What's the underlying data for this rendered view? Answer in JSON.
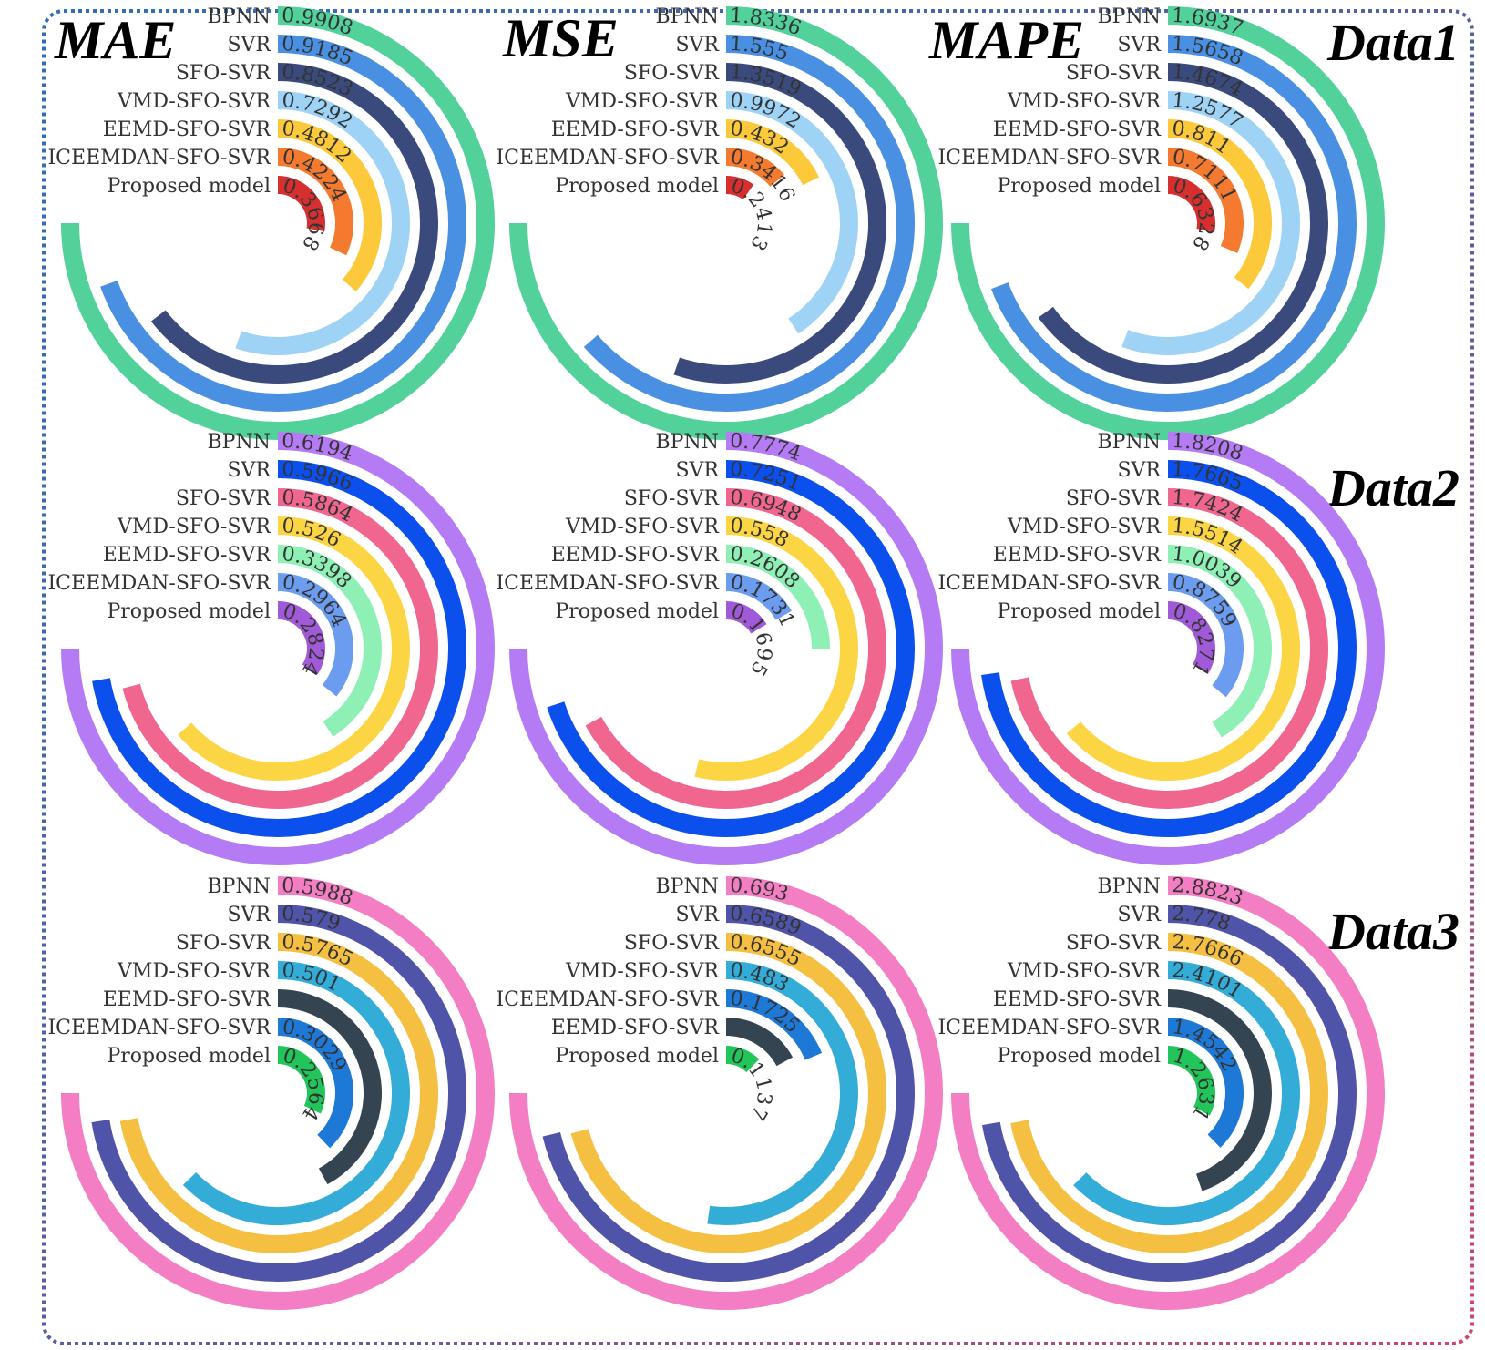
{
  "metric_titles": [
    "MAE",
    "MSE",
    "MAPE"
  ],
  "row_titles": [
    "Data1",
    "Data2",
    "Data3"
  ],
  "chart_data": [
    {
      "type": "radial-bar",
      "row": 0,
      "col": 0,
      "categories": [
        "BPNN",
        "SVR",
        "SFO-SVR",
        "VMD-SFO-SVR",
        "EEMD-SFO-SVR",
        "ICEEMDAN-SFO-SVR",
        "Proposed model"
      ],
      "values": [
        0.9908,
        0.9185,
        0.8523,
        0.7292,
        0.4812,
        0.4224,
        0.3668
      ],
      "labels": [
        "0.9908",
        "0.9185",
        "0.8523",
        "0.7292",
        "0.4812",
        "0.4224",
        "0.3668"
      ],
      "colors": [
        "#52d19b",
        "#4a90e2",
        "#3a4a7c",
        "#9fd3f5",
        "#fbc93a",
        "#f47a30",
        "#d62f2f"
      ]
    },
    {
      "type": "radial-bar",
      "row": 0,
      "col": 1,
      "categories": [
        "BPNN",
        "SVR",
        "SFO-SVR",
        "VMD-SFO-SVR",
        "EEMD-SFO-SVR",
        "ICEEMDAN-SFO-SVR",
        "Proposed model"
      ],
      "values": [
        1.8336,
        1.555,
        1.3519,
        0.9972,
        0.432,
        0.3416,
        0.2413
      ],
      "labels": [
        "1.8336",
        "1.555",
        "1.3519",
        "0.9972",
        "0.432",
        "0.3416",
        "0.2413"
      ],
      "colors": [
        "#52d19b",
        "#4a90e2",
        "#3a4a7c",
        "#9fd3f5",
        "#fbc93a",
        "#f47a30",
        "#d62f2f"
      ]
    },
    {
      "type": "radial-bar",
      "row": 0,
      "col": 2,
      "categories": [
        "BPNN",
        "SVR",
        "SFO-SVR",
        "VMD-SFO-SVR",
        "EEMD-SFO-SVR",
        "ICEEMDAN-SFO-SVR",
        "Proposed model"
      ],
      "values": [
        1.6937,
        1.5658,
        1.4674,
        1.2577,
        0.811,
        0.7111,
        0.6328
      ],
      "labels": [
        "1.6937",
        "1.5658",
        "1.4674",
        "1.2577",
        "0.811",
        "0.7111",
        "0.6328"
      ],
      "colors": [
        "#52d19b",
        "#4a90e2",
        "#3a4a7c",
        "#9fd3f5",
        "#fbc93a",
        "#f47a30",
        "#d62f2f"
      ]
    },
    {
      "type": "radial-bar",
      "row": 1,
      "col": 0,
      "categories": [
        "BPNN",
        "SVR",
        "SFO-SVR",
        "VMD-SFO-SVR",
        "EEMD-SFO-SVR",
        "ICEEMDAN-SFO-SVR",
        "Proposed model"
      ],
      "values": [
        0.6194,
        0.5966,
        0.5864,
        0.526,
        0.3398,
        0.2964,
        0.2824
      ],
      "labels": [
        "0.6194",
        "0.5966",
        "0.5864",
        "0.526",
        "0.3398",
        "0.2964",
        "0.2824"
      ],
      "colors": [
        "#b57bf5",
        "#0b4fec",
        "#f0668f",
        "#fcd545",
        "#8ff0b5",
        "#6b9cf0",
        "#a05ad8"
      ]
    },
    {
      "type": "radial-bar",
      "row": 1,
      "col": 1,
      "categories": [
        "BPNN",
        "SVR",
        "SFO-SVR",
        "VMD-SFO-SVR",
        "EEMD-SFO-SVR",
        "ICEEMDAN-SFO-SVR",
        "Proposed model"
      ],
      "values": [
        0.7774,
        0.7251,
        0.6948,
        0.558,
        0.2608,
        0.1731,
        0.1695
      ],
      "labels": [
        "0.7774",
        "0.7251",
        "0.6948",
        "0.558",
        "0.2608",
        "0.1731",
        "0.1695"
      ],
      "colors": [
        "#b57bf5",
        "#0b4fec",
        "#f0668f",
        "#fcd545",
        "#8ff0b5",
        "#6b9cf0",
        "#a05ad8"
      ]
    },
    {
      "type": "radial-bar",
      "row": 1,
      "col": 2,
      "categories": [
        "BPNN",
        "SVR",
        "SFO-SVR",
        "VMD-SFO-SVR",
        "EEMD-SFO-SVR",
        "ICEEMDAN-SFO-SVR",
        "Proposed model"
      ],
      "values": [
        1.8208,
        1.7665,
        1.7424,
        1.5514,
        1.0039,
        0.8759,
        0.8271
      ],
      "labels": [
        "1.8208",
        "1.7665",
        "1.7424",
        "1.5514",
        "1.0039",
        "0.8759",
        "0.8271"
      ],
      "colors": [
        "#b57bf5",
        "#0b4fec",
        "#f0668f",
        "#fcd545",
        "#8ff0b5",
        "#6b9cf0",
        "#a05ad8"
      ]
    },
    {
      "type": "radial-bar",
      "row": 2,
      "col": 0,
      "categories": [
        "BPNN",
        "SVR",
        "SFO-SVR",
        "VMD-SFO-SVR",
        "EEMD-SFO-SVR",
        "ICEEMDAN-SFO-SVR",
        "Proposed model"
      ],
      "values": [
        0.5988,
        0.579,
        0.5765,
        0.501,
        0.3359,
        0.3029,
        0.2564
      ],
      "labels": [
        "0.5988",
        "0.579",
        "0.5765",
        "0.501",
        "",
        "0.3029",
        "0.2564"
      ],
      "colors": [
        "#f47ec3",
        "#4f54a8",
        "#f5c042",
        "#33acd8",
        "#344450",
        "#1d78d6",
        "#22c55a"
      ]
    },
    {
      "type": "radial-bar",
      "row": 2,
      "col": 1,
      "categories": [
        "BPNN",
        "SVR",
        "SFO-SVR",
        "VMD-SFO-SVR",
        "ICEEMDAN-SFO-SVR",
        "EEMD-SFO-SVR",
        "Proposed model"
      ],
      "values": [
        0.693,
        0.6589,
        0.6555,
        0.483,
        0.1725,
        0.1582,
        0.1137
      ],
      "labels": [
        "0.693",
        "0.6589",
        "0.6555",
        "0.483",
        "0.1725",
        "",
        "0.1137"
      ],
      "colors": [
        "#f47ec3",
        "#4f54a8",
        "#f5c042",
        "#33acd8",
        "#1d78d6",
        "#344450",
        "#22c55a"
      ]
    },
    {
      "type": "radial-bar",
      "row": 2,
      "col": 2,
      "categories": [
        "BPNN",
        "SVR",
        "SFO-SVR",
        "VMD-SFO-SVR",
        "EEMD-SFO-SVR",
        "ICEEMDAN-SFO-SVR",
        "Proposed model"
      ],
      "values": [
        2.8823,
        2.778,
        2.7666,
        2.4101,
        1.7163,
        1.4542,
        1.2631
      ],
      "labels": [
        "2.8823",
        "2.778",
        "2.7666",
        "2.4101",
        "",
        "1.4542",
        "1.2631"
      ],
      "colors": [
        "#f47ec3",
        "#4f54a8",
        "#f5c042",
        "#33acd8",
        "#344450",
        "#1d78d6",
        "#22c55a"
      ]
    }
  ]
}
